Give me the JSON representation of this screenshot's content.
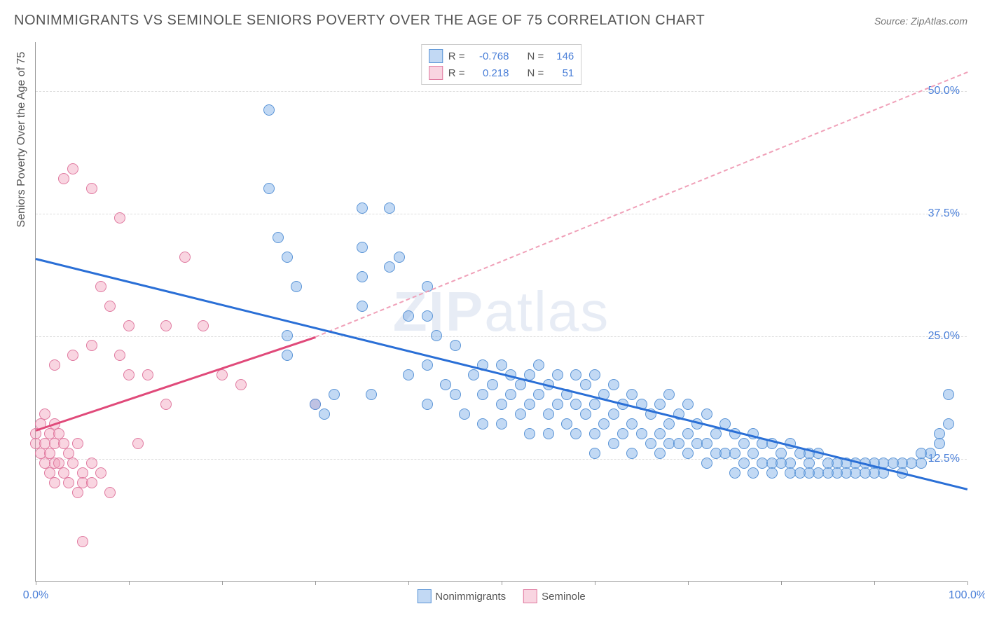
{
  "title": "NONIMMIGRANTS VS SEMINOLE SENIORS POVERTY OVER THE AGE OF 75 CORRELATION CHART",
  "source": "Source: ZipAtlas.com",
  "ylabel": "Seniors Poverty Over the Age of 75",
  "watermark_bold": "ZIP",
  "watermark_rest": "atlas",
  "chart": {
    "type": "scatter",
    "background_color": "#ffffff",
    "grid_color": "#dddddd",
    "axis_color": "#999999",
    "xlim": [
      0,
      100
    ],
    "ylim": [
      0,
      55
    ],
    "yticks": [
      {
        "v": 12.5,
        "label": "12.5%"
      },
      {
        "v": 25.0,
        "label": "25.0%"
      },
      {
        "v": 37.5,
        "label": "37.5%"
      },
      {
        "v": 50.0,
        "label": "50.0%"
      }
    ],
    "xticks_major": [
      0,
      100
    ],
    "xtick_labels": [
      {
        "v": 0,
        "label": "0.0%"
      },
      {
        "v": 100,
        "label": "100.0%"
      }
    ],
    "xticks_minor": [
      10,
      20,
      30,
      40,
      50,
      60,
      70,
      80,
      90
    ],
    "label_color": "#4a7fd8",
    "label_fontsize": 16
  },
  "series": {
    "blue": {
      "name": "Nonimmigrants",
      "color_fill": "rgba(120,170,230,0.45)",
      "color_stroke": "#5a94d6",
      "point_radius": 8,
      "R": "-0.768",
      "N": "146",
      "trend": {
        "x1": 0,
        "y1": 33,
        "x2": 100,
        "y2": 9.5,
        "color": "#2a6fd6",
        "dash": false
      },
      "points": [
        [
          25,
          48
        ],
        [
          25,
          40
        ],
        [
          26,
          35
        ],
        [
          27,
          33
        ],
        [
          27,
          25
        ],
        [
          27,
          23
        ],
        [
          28,
          30
        ],
        [
          30,
          18
        ],
        [
          31,
          17
        ],
        [
          32,
          19
        ],
        [
          35,
          38
        ],
        [
          35,
          34
        ],
        [
          35,
          31
        ],
        [
          35,
          28
        ],
        [
          36,
          19
        ],
        [
          38,
          38
        ],
        [
          38,
          32
        ],
        [
          39,
          33
        ],
        [
          40,
          27
        ],
        [
          40,
          21
        ],
        [
          42,
          30
        ],
        [
          42,
          27
        ],
        [
          42,
          22
        ],
        [
          42,
          18
        ],
        [
          43,
          25
        ],
        [
          44,
          20
        ],
        [
          45,
          24
        ],
        [
          45,
          19
        ],
        [
          46,
          17
        ],
        [
          47,
          21
        ],
        [
          48,
          22
        ],
        [
          48,
          19
        ],
        [
          48,
          16
        ],
        [
          49,
          20
        ],
        [
          50,
          22
        ],
        [
          50,
          18
        ],
        [
          50,
          16
        ],
        [
          51,
          21
        ],
        [
          51,
          19
        ],
        [
          52,
          20
        ],
        [
          52,
          17
        ],
        [
          53,
          21
        ],
        [
          53,
          18
        ],
        [
          53,
          15
        ],
        [
          54,
          22
        ],
        [
          54,
          19
        ],
        [
          55,
          20
        ],
        [
          55,
          17
        ],
        [
          55,
          15
        ],
        [
          56,
          21
        ],
        [
          56,
          18
        ],
        [
          57,
          19
        ],
        [
          57,
          16
        ],
        [
          58,
          21
        ],
        [
          58,
          18
        ],
        [
          58,
          15
        ],
        [
          59,
          20
        ],
        [
          59,
          17
        ],
        [
          60,
          21
        ],
        [
          60,
          18
        ],
        [
          60,
          15
        ],
        [
          60,
          13
        ],
        [
          61,
          19
        ],
        [
          61,
          16
        ],
        [
          62,
          20
        ],
        [
          62,
          17
        ],
        [
          62,
          14
        ],
        [
          63,
          18
        ],
        [
          63,
          15
        ],
        [
          64,
          19
        ],
        [
          64,
          16
        ],
        [
          64,
          13
        ],
        [
          65,
          18
        ],
        [
          65,
          15
        ],
        [
          66,
          17
        ],
        [
          66,
          14
        ],
        [
          67,
          18
        ],
        [
          67,
          15
        ],
        [
          67,
          13
        ],
        [
          68,
          19
        ],
        [
          68,
          16
        ],
        [
          68,
          14
        ],
        [
          69,
          17
        ],
        [
          69,
          14
        ],
        [
          70,
          18
        ],
        [
          70,
          15
        ],
        [
          70,
          13
        ],
        [
          71,
          16
        ],
        [
          71,
          14
        ],
        [
          72,
          17
        ],
        [
          72,
          14
        ],
        [
          72,
          12
        ],
        [
          73,
          15
        ],
        [
          73,
          13
        ],
        [
          74,
          16
        ],
        [
          74,
          13
        ],
        [
          75,
          15
        ],
        [
          75,
          13
        ],
        [
          75,
          11
        ],
        [
          76,
          14
        ],
        [
          76,
          12
        ],
        [
          77,
          15
        ],
        [
          77,
          13
        ],
        [
          77,
          11
        ],
        [
          78,
          14
        ],
        [
          78,
          12
        ],
        [
          79,
          14
        ],
        [
          79,
          12
        ],
        [
          79,
          11
        ],
        [
          80,
          13
        ],
        [
          80,
          12
        ],
        [
          81,
          14
        ],
        [
          81,
          12
        ],
        [
          81,
          11
        ],
        [
          82,
          13
        ],
        [
          82,
          11
        ],
        [
          83,
          13
        ],
        [
          83,
          12
        ],
        [
          83,
          11
        ],
        [
          84,
          13
        ],
        [
          84,
          11
        ],
        [
          85,
          12
        ],
        [
          85,
          11
        ],
        [
          86,
          12
        ],
        [
          86,
          11
        ],
        [
          87,
          12
        ],
        [
          87,
          11
        ],
        [
          88,
          12
        ],
        [
          88,
          11
        ],
        [
          89,
          12
        ],
        [
          89,
          11
        ],
        [
          90,
          12
        ],
        [
          90,
          11
        ],
        [
          91,
          12
        ],
        [
          91,
          11
        ],
        [
          92,
          12
        ],
        [
          93,
          12
        ],
        [
          93,
          11
        ],
        [
          94,
          12
        ],
        [
          95,
          12
        ],
        [
          95,
          13
        ],
        [
          96,
          13
        ],
        [
          97,
          14
        ],
        [
          97,
          15
        ],
        [
          98,
          16
        ],
        [
          98,
          19
        ]
      ]
    },
    "pink": {
      "name": "Seminole",
      "color_fill": "rgba(240,150,180,0.40)",
      "color_stroke": "#e07aa0",
      "point_radius": 8,
      "R": "0.218",
      "N": "51",
      "trend_solid": {
        "x1": 0,
        "y1": 15.5,
        "x2": 30,
        "y2": 25,
        "color": "#e04a7a",
        "dash": false
      },
      "trend_dash": {
        "x1": 30,
        "y1": 25,
        "x2": 100,
        "y2": 52,
        "color": "#f0a0b8",
        "dash": true
      },
      "points": [
        [
          0,
          15
        ],
        [
          0,
          14
        ],
        [
          0.5,
          16
        ],
        [
          0.5,
          13
        ],
        [
          1,
          17
        ],
        [
          1,
          14
        ],
        [
          1,
          12
        ],
        [
          1.5,
          15
        ],
        [
          1.5,
          13
        ],
        [
          1.5,
          11
        ],
        [
          2,
          22
        ],
        [
          2,
          16
        ],
        [
          2,
          14
        ],
        [
          2,
          12
        ],
        [
          2,
          10
        ],
        [
          2.5,
          15
        ],
        [
          2.5,
          12
        ],
        [
          3,
          41
        ],
        [
          3,
          14
        ],
        [
          3,
          11
        ],
        [
          3.5,
          13
        ],
        [
          3.5,
          10
        ],
        [
          4,
          42
        ],
        [
          4,
          23
        ],
        [
          4,
          12
        ],
        [
          4.5,
          14
        ],
        [
          4.5,
          9
        ],
        [
          5,
          11
        ],
        [
          5,
          10
        ],
        [
          5,
          4
        ],
        [
          6,
          40
        ],
        [
          6,
          24
        ],
        [
          6,
          12
        ],
        [
          6,
          10
        ],
        [
          7,
          30
        ],
        [
          7,
          11
        ],
        [
          8,
          28
        ],
        [
          8,
          9
        ],
        [
          9,
          37
        ],
        [
          9,
          23
        ],
        [
          10,
          26
        ],
        [
          10,
          21
        ],
        [
          11,
          14
        ],
        [
          12,
          21
        ],
        [
          14,
          26
        ],
        [
          14,
          18
        ],
        [
          16,
          33
        ],
        [
          18,
          26
        ],
        [
          20,
          21
        ],
        [
          22,
          20
        ],
        [
          30,
          18
        ]
      ]
    }
  },
  "legend_top": {
    "rows": [
      {
        "swatch_fill": "rgba(120,170,230,0.45)",
        "swatch_stroke": "#5a94d6",
        "r_label": "R =",
        "r_val": "-0.768",
        "n_label": "N =",
        "n_val": "146"
      },
      {
        "swatch_fill": "rgba(240,150,180,0.40)",
        "swatch_stroke": "#e07aa0",
        "r_label": "R =",
        "r_val": "0.218",
        "n_label": "N =",
        "n_val": "51"
      }
    ]
  },
  "legend_bottom": {
    "items": [
      {
        "swatch_fill": "rgba(120,170,230,0.45)",
        "swatch_stroke": "#5a94d6",
        "label": "Nonimmigrants"
      },
      {
        "swatch_fill": "rgba(240,150,180,0.40)",
        "swatch_stroke": "#e07aa0",
        "label": "Seminole"
      }
    ]
  }
}
